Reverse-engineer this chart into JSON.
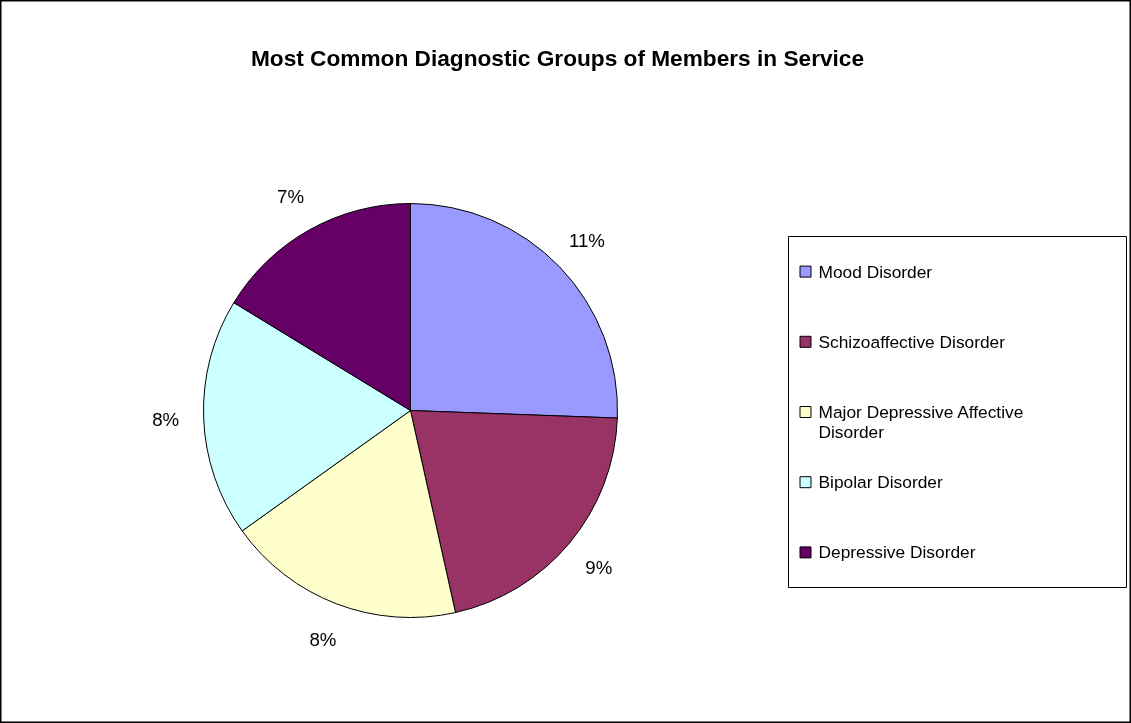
{
  "chart_data": {
    "type": "pie",
    "title": "Most Common Diagnostic Groups of Members in Service",
    "categories": [
      "Mood Disorder",
      "Schizoaffective Disorder",
      "Major Depressive Affective Disorder",
      "Bipolar Disorder",
      "Depressive Disorder"
    ],
    "values": [
      11,
      9,
      8,
      8,
      7
    ],
    "value_labels": [
      "11%",
      "9%",
      "8%",
      "8%",
      "7%"
    ],
    "colors": [
      "#9999ff",
      "#993366",
      "#ffffcc",
      "#ccffff",
      "#660066"
    ],
    "legend": "right"
  }
}
